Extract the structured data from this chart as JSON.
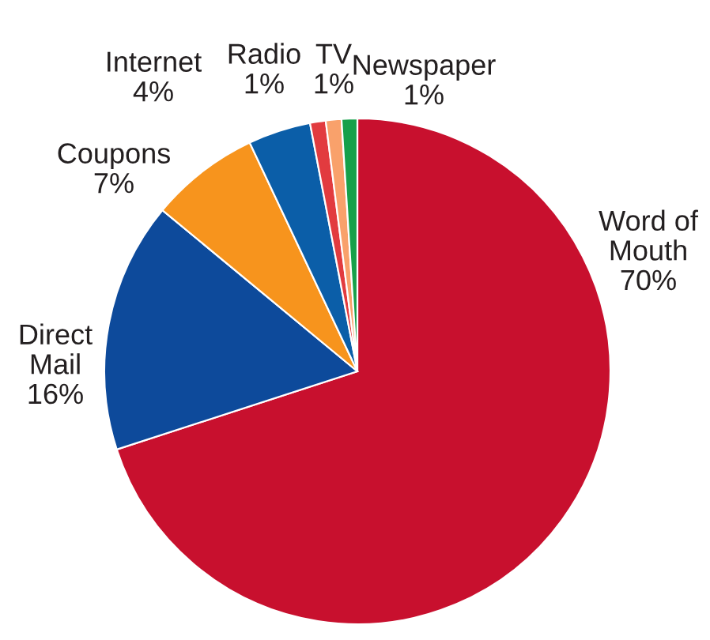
{
  "chart_data": {
    "type": "pie",
    "categories": [
      "Word of\nMouth",
      "Direct\nMail",
      "Coupons",
      "Internet",
      "Radio",
      "TV",
      "Newspaper"
    ],
    "values": [
      70,
      16,
      7,
      4,
      1,
      1,
      1
    ],
    "value_labels": [
      "70%",
      "16%",
      "7%",
      "4%",
      "1%",
      "1%",
      "1%"
    ],
    "colors": [
      "#c8102e",
      "#0d4a9b",
      "#f7941d",
      "#0b5ea8",
      "#e23b3f",
      "#f9a16b",
      "#16a04a"
    ]
  }
}
